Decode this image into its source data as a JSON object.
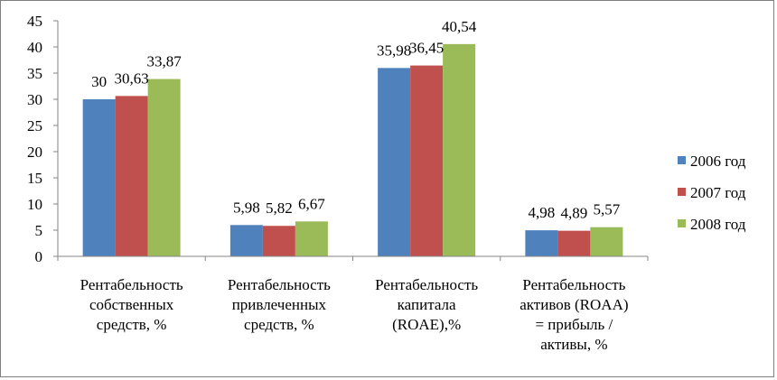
{
  "chart_data": {
    "type": "bar",
    "title": "",
    "xlabel": "",
    "ylabel": "",
    "ylim": [
      0,
      45
    ],
    "yticks": [
      0,
      5,
      10,
      15,
      20,
      25,
      30,
      35,
      40,
      45
    ],
    "grid": false,
    "legend_position": "right",
    "categories": [
      [
        "Рентабельность",
        "собственных",
        "средств, %"
      ],
      [
        "Рентабельность",
        "привлеченных",
        "средств, %"
      ],
      [
        "Рентабельность",
        "капитала",
        "(ROAE),%"
      ],
      [
        "Рентабельность",
        "активов (ROAA)",
        "= прибыль /",
        "активы, %"
      ]
    ],
    "series": [
      {
        "name": "2006 год",
        "color": "#4f81bd",
        "values": [
          30,
          5.98,
          35.98,
          4.98
        ],
        "labels": [
          "30",
          "5,98",
          "35,98",
          "4,98"
        ]
      },
      {
        "name": "2007 год",
        "color": "#c0504d",
        "values": [
          30.63,
          5.82,
          36.45,
          4.89
        ],
        "labels": [
          "30,63",
          "5,82",
          "36,45",
          "4,89"
        ]
      },
      {
        "name": "2008 год",
        "color": "#9bbb59",
        "values": [
          33.87,
          6.67,
          40.54,
          5.57
        ],
        "labels": [
          "33,87",
          "6,67",
          "40,54",
          "5,57"
        ]
      }
    ]
  }
}
